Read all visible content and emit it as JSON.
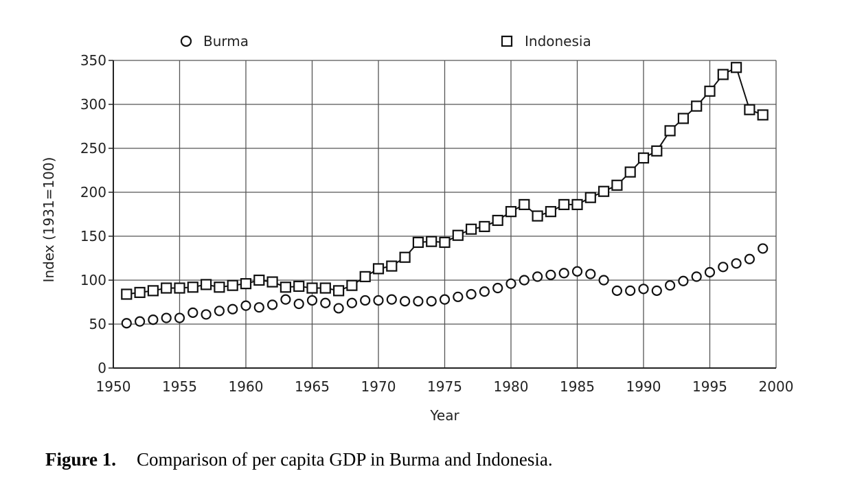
{
  "caption": {
    "label": "Figure 1.",
    "text": "Comparison of per capita GDP in Burma and Indonesia."
  },
  "chart_data": {
    "type": "line",
    "xlabel": "Year",
    "ylabel": "Index (1931=100)",
    "xlim": [
      1950,
      2000
    ],
    "ylim": [
      0,
      350
    ],
    "xticks": [
      "1950",
      "1955",
      "1960",
      "1965",
      "1970",
      "1975",
      "1980",
      "1985",
      "1990",
      "1995",
      "2000"
    ],
    "yticks": [
      "0",
      "50",
      "100",
      "150",
      "200",
      "250",
      "300",
      "350"
    ],
    "grid": true,
    "legend_position": "top",
    "x": [
      1951,
      1952,
      1953,
      1954,
      1955,
      1956,
      1957,
      1958,
      1959,
      1960,
      1961,
      1962,
      1963,
      1964,
      1965,
      1966,
      1967,
      1968,
      1969,
      1970,
      1971,
      1972,
      1973,
      1974,
      1975,
      1976,
      1977,
      1978,
      1979,
      1980,
      1981,
      1982,
      1983,
      1984,
      1985,
      1986,
      1987,
      1988,
      1989,
      1990,
      1991,
      1992,
      1993,
      1994,
      1995,
      1996,
      1997,
      1998,
      1999
    ],
    "series": [
      {
        "name": "Burma",
        "marker": "circle",
        "connected": false,
        "values": [
          51,
          53,
          55,
          57,
          57,
          63,
          61,
          65,
          67,
          71,
          69,
          72,
          78,
          73,
          77,
          74,
          68,
          74,
          77,
          77,
          78,
          76,
          76,
          76,
          78,
          81,
          84,
          87,
          91,
          96,
          100,
          104,
          106,
          108,
          110,
          107,
          100,
          88,
          88,
          90,
          88,
          94,
          99,
          104,
          109,
          115,
          119,
          124,
          136
        ]
      },
      {
        "name": "Indonesia",
        "marker": "square",
        "connected": true,
        "values": [
          84,
          86,
          88,
          91,
          91,
          92,
          95,
          92,
          94,
          96,
          100,
          98,
          92,
          93,
          91,
          91,
          88,
          94,
          104,
          113,
          116,
          126,
          143,
          144,
          143,
          151,
          158,
          161,
          168,
          178,
          186,
          173,
          178,
          186,
          186,
          194,
          201,
          208,
          223,
          239,
          247,
          270,
          284,
          298,
          315,
          334,
          342,
          294,
          288
        ]
      }
    ]
  }
}
